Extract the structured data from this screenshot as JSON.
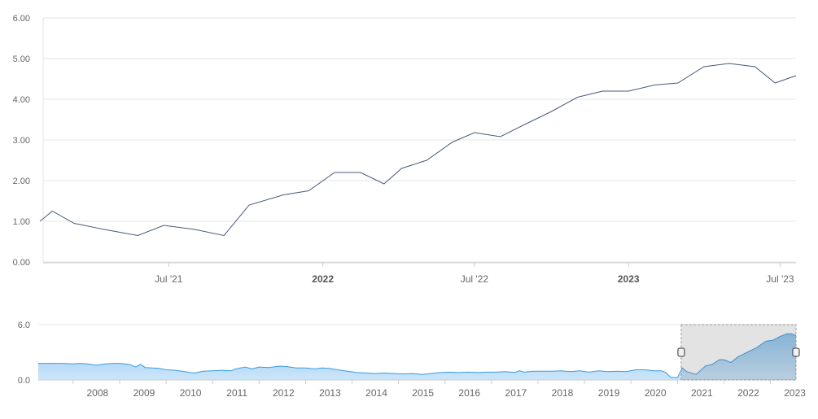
{
  "chart_data": [
    {
      "type": "line",
      "role": "main",
      "title": "",
      "xlabel": "",
      "ylabel": "",
      "ylim": [
        0,
        6
      ],
      "y_ticks": [
        "0.00",
        "1.00",
        "2.00",
        "3.00",
        "4.00",
        "5.00",
        "6.00"
      ],
      "x_ticks": [
        {
          "label": "Jul '21",
          "date": "2021-07-01",
          "major": false
        },
        {
          "label": "2022",
          "date": "2022-01-01",
          "major": true
        },
        {
          "label": "Jul '22",
          "date": "2022-07-01",
          "major": false
        },
        {
          "label": "2023",
          "date": "2023-01-01",
          "major": true
        },
        {
          "label": "Jul '23",
          "date": "2023-07-01",
          "major": false
        }
      ],
      "x_range": [
        "2021-02-01",
        "2023-07-20"
      ],
      "line_color": "#4a5a7a",
      "grid": true,
      "series": [
        {
          "x": [
            "2021-02-01",
            "2021-02-12",
            "2021-03-10",
            "2021-04-15",
            "2021-05-25",
            "2021-06-25",
            "2021-08-01",
            "2021-09-05",
            "2021-10-05",
            "2021-11-15",
            "2021-12-15",
            "2022-01-15",
            "2022-02-15",
            "2022-03-15",
            "2022-04-05",
            "2022-05-05",
            "2022-06-05",
            "2022-07-01",
            "2022-08-01",
            "2022-09-01",
            "2022-10-01",
            "2022-11-01",
            "2022-12-01",
            "2023-01-01",
            "2023-02-01",
            "2023-03-01",
            "2023-04-01",
            "2023-05-01",
            "2023-06-01",
            "2023-06-25",
            "2023-07-20"
          ],
          "y": [
            1.0,
            1.25,
            0.95,
            0.8,
            0.65,
            0.9,
            0.8,
            0.65,
            1.4,
            1.65,
            1.75,
            2.2,
            2.2,
            1.92,
            2.3,
            2.5,
            2.95,
            3.18,
            3.08,
            3.4,
            3.7,
            4.05,
            4.2,
            4.2,
            4.35,
            4.4,
            4.8,
            4.88,
            4.8,
            4.4,
            4.58
          ]
        }
      ]
    },
    {
      "type": "area",
      "role": "navigator",
      "ylim": [
        0,
        6
      ],
      "y_ticks": [
        "0.0",
        "6.0"
      ],
      "x_ticks": [
        "2008",
        "2009",
        "2010",
        "2011",
        "2012",
        "2013",
        "2014",
        "2015",
        "2016",
        "2017",
        "2018",
        "2019",
        "2020",
        "2021",
        "2022",
        "2023"
      ],
      "x_range": [
        2007.25,
        2023.55
      ],
      "selected_range": [
        2021.08,
        2023.55
      ],
      "fill_color": "#cce6fa",
      "line_color": "#3a9ce0",
      "series": [
        {
          "x": [
            2007.25,
            2007.5,
            2007.75,
            2008.0,
            2008.15,
            2008.3,
            2008.5,
            2008.7,
            2008.85,
            2009.0,
            2009.2,
            2009.35,
            2009.45,
            2009.55,
            2009.7,
            2009.85,
            2010.0,
            2010.2,
            2010.4,
            2010.6,
            2010.8,
            2011.0,
            2011.2,
            2011.4,
            2011.5,
            2011.7,
            2011.85,
            2012.0,
            2012.2,
            2012.45,
            2012.6,
            2012.8,
            2013.0,
            2013.2,
            2013.35,
            2013.5,
            2013.7,
            2013.9,
            2014.1,
            2014.3,
            2014.5,
            2014.7,
            2014.9,
            2015.1,
            2015.3,
            2015.5,
            2015.7,
            2015.9,
            2016.1,
            2016.3,
            2016.5,
            2016.7,
            2016.9,
            2017.1,
            2017.3,
            2017.5,
            2017.6,
            2017.7,
            2017.9,
            2018.1,
            2018.3,
            2018.5,
            2018.7,
            2018.9,
            2019.1,
            2019.3,
            2019.5,
            2019.7,
            2019.9,
            2020.1,
            2020.3,
            2020.5,
            2020.65,
            2020.75,
            2020.85,
            2021.0,
            2021.1,
            2021.2,
            2021.4,
            2021.6,
            2021.75,
            2021.9,
            2022.0,
            2022.15,
            2022.3,
            2022.5,
            2022.7,
            2022.9,
            2023.05,
            2023.2,
            2023.35,
            2023.45,
            2023.55
          ],
          "y": [
            1.8,
            1.8,
            1.8,
            1.75,
            1.8,
            1.75,
            1.6,
            1.75,
            1.8,
            1.8,
            1.7,
            1.4,
            1.7,
            1.35,
            1.3,
            1.25,
            1.1,
            1.05,
            0.9,
            0.75,
            0.95,
            1.0,
            1.05,
            1.0,
            1.2,
            1.4,
            1.2,
            1.4,
            1.35,
            1.5,
            1.45,
            1.3,
            1.3,
            1.2,
            1.3,
            1.25,
            1.1,
            0.95,
            0.8,
            0.75,
            0.7,
            0.75,
            0.7,
            0.65,
            0.7,
            0.6,
            0.7,
            0.8,
            0.85,
            0.8,
            0.85,
            0.8,
            0.85,
            0.85,
            0.9,
            0.8,
            1.0,
            0.85,
            0.95,
            0.95,
            0.95,
            1.0,
            0.9,
            1.0,
            0.85,
            1.0,
            0.9,
            0.95,
            0.9,
            1.1,
            1.1,
            1.0,
            1.0,
            0.8,
            0.3,
            0.25,
            1.3,
            0.9,
            0.6,
            1.5,
            1.7,
            2.2,
            2.2,
            1.9,
            2.5,
            3.0,
            3.5,
            4.2,
            4.3,
            4.7,
            5.0,
            5.0,
            4.8
          ]
        }
      ]
    }
  ]
}
